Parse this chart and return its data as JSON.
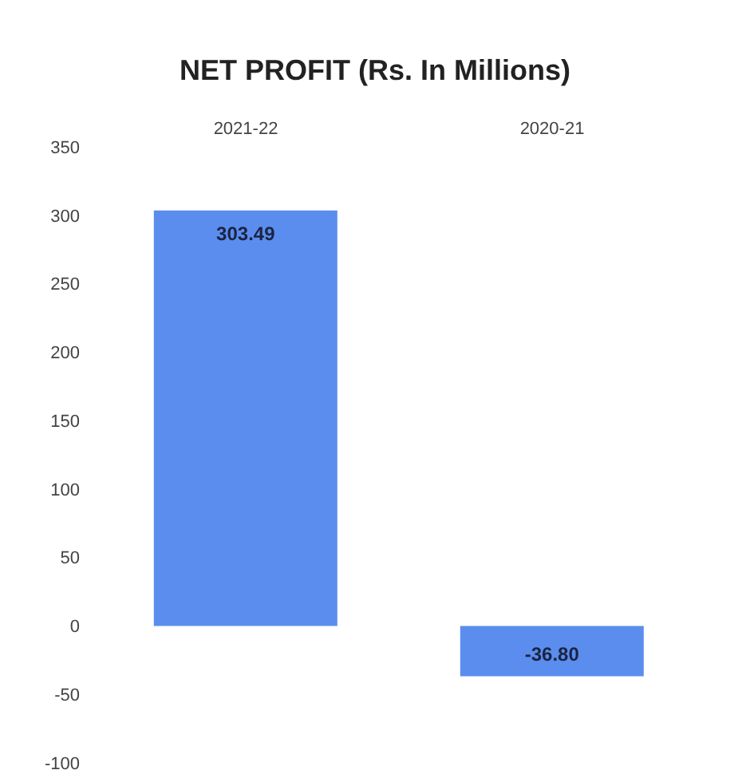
{
  "chart_data": {
    "type": "bar",
    "title": "NET PROFIT (Rs. In Millions)",
    "categories": [
      "2021-22",
      "2020-21"
    ],
    "values": [
      303.49,
      -36.8
    ],
    "value_labels": [
      "303.49",
      "-36.80"
    ],
    "color": "#5b8def",
    "ylim": [
      -100,
      350
    ],
    "yticks": [
      -100,
      -50,
      0,
      50,
      100,
      150,
      200,
      250,
      300,
      350
    ],
    "grid": false
  }
}
